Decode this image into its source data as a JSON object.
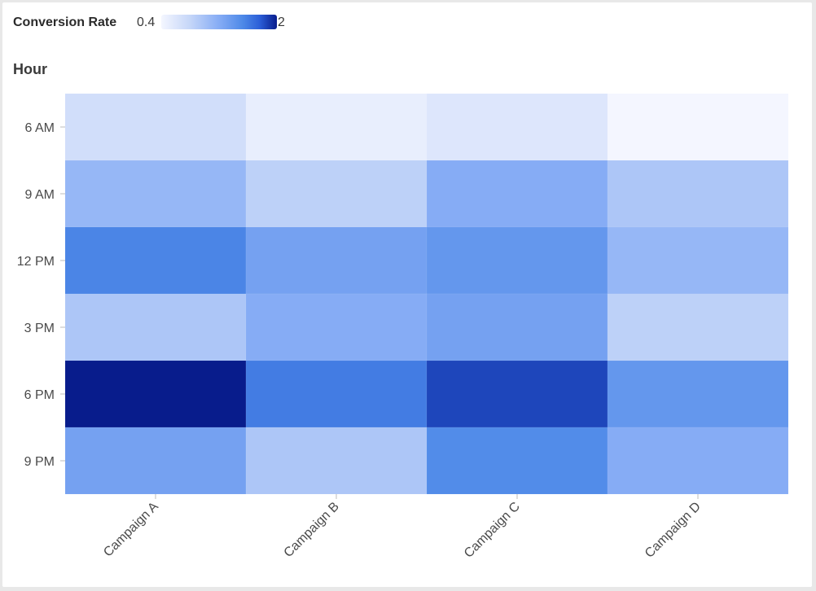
{
  "chart_data": {
    "type": "heatmap",
    "title": "",
    "legend": {
      "title": "Conversion Rate",
      "min_label": "0.4",
      "max_label": "2",
      "min": 0.4,
      "max": 2,
      "placement": "top-left"
    },
    "ylabel": "Hour",
    "xlabel": "",
    "x_categories": [
      "Campaign A",
      "Campaign B",
      "Campaign C",
      "Campaign D"
    ],
    "y_categories": [
      "6 AM",
      "9 AM",
      "12 PM",
      "3 PM",
      "6 PM",
      "9 PM"
    ],
    "values": [
      [
        0.7,
        0.5,
        0.6,
        0.4
      ],
      [
        1.1,
        0.85,
        1.2,
        0.95
      ],
      [
        1.55,
        1.3,
        1.4,
        1.1
      ],
      [
        0.95,
        1.2,
        1.3,
        0.85
      ],
      [
        2.0,
        1.6,
        1.85,
        1.4
      ],
      [
        1.3,
        0.95,
        1.5,
        1.2
      ]
    ],
    "colors": {
      "low": "#f4f6ff",
      "mid1": "#c5d6f8",
      "mid2": "#86acf5",
      "mid3": "#4f8ae8",
      "mid4": "#2c5fd8",
      "high": "#081c8c"
    },
    "grid": false
  }
}
